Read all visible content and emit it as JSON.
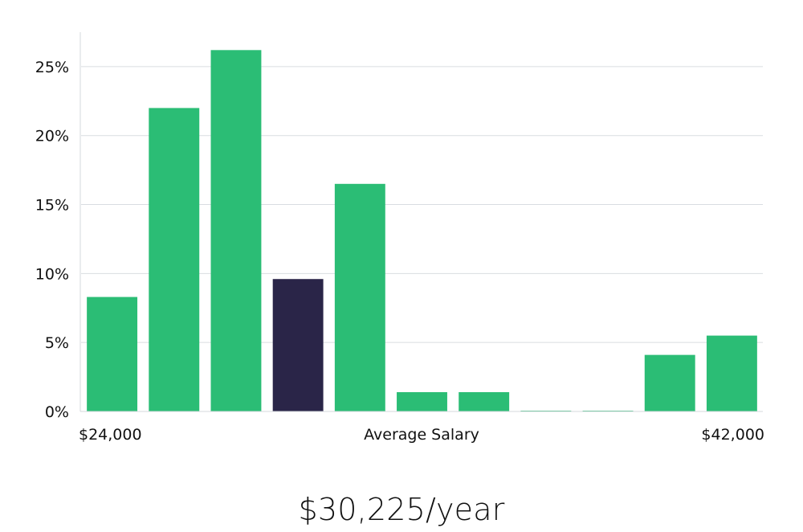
{
  "chart_data": {
    "type": "bar",
    "categories": [
      "1",
      "2",
      "3",
      "4",
      "5",
      "6",
      "7",
      "8",
      "9",
      "10",
      "11"
    ],
    "values": [
      8.3,
      22.0,
      26.2,
      9.6,
      16.5,
      1.4,
      1.4,
      0.05,
      0.05,
      4.1,
      5.5
    ],
    "highlight_index": 3,
    "colors": {
      "bar": "#2bbd75",
      "highlight": "#2a2548",
      "grid": "#d9dde1"
    },
    "ylim": [
      0,
      27.5
    ],
    "yticks": [
      0,
      5,
      10,
      15,
      20,
      25
    ],
    "ytick_labels": [
      "0%",
      "5%",
      "10%",
      "15%",
      "20%",
      "25%"
    ],
    "x_left_label": "$24,000",
    "x_center_label": "Average Salary",
    "x_right_label": "$42,000",
    "grid": true,
    "legend": "none"
  },
  "summary": {
    "average_salary": "$30,225/year"
  }
}
